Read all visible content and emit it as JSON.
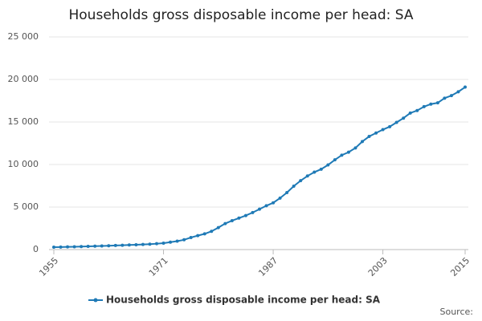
{
  "chart_data": {
    "type": "line",
    "title": "Households gross disposable income per head: SA",
    "source": "Source:",
    "x": [
      1955,
      1956,
      1957,
      1958,
      1959,
      1960,
      1961,
      1962,
      1963,
      1964,
      1965,
      1966,
      1967,
      1968,
      1969,
      1970,
      1971,
      1972,
      1973,
      1974,
      1975,
      1976,
      1977,
      1978,
      1979,
      1980,
      1981,
      1982,
      1983,
      1984,
      1985,
      1986,
      1987,
      1988,
      1989,
      1990,
      1991,
      1992,
      1993,
      1994,
      1995,
      1996,
      1997,
      1998,
      1999,
      2000,
      2001,
      2002,
      2003,
      2004,
      2005,
      2006,
      2007,
      2008,
      2009,
      2010,
      2011,
      2012,
      2013,
      2014,
      2015
    ],
    "series": [
      {
        "name": "Households gross disposable income per head: SA",
        "color": "#1f7ab6",
        "values": [
          280,
          300,
          320,
          335,
          355,
          380,
          405,
          425,
          450,
          480,
          510,
          540,
          565,
          600,
          635,
          690,
          760,
          870,
          990,
          1150,
          1420,
          1640,
          1850,
          2150,
          2580,
          3060,
          3400,
          3700,
          4000,
          4350,
          4750,
          5150,
          5500,
          6050,
          6700,
          7450,
          8100,
          8650,
          9100,
          9450,
          9950,
          10550,
          11100,
          11450,
          11950,
          12700,
          13300,
          13700,
          14100,
          14450,
          14950,
          15450,
          16050,
          16350,
          16800,
          17100,
          17250,
          17800,
          18100,
          18550,
          19100
        ]
      }
    ],
    "xlim": [
      1955,
      2015
    ],
    "xticks": [
      1955,
      1971,
      1987,
      2003,
      2015
    ],
    "ylim": [
      0,
      25000
    ],
    "yticks": [
      0,
      {
        "value": 5000,
        "label": "5 000"
      },
      {
        "value": 10000,
        "label": "10 000"
      },
      {
        "value": 15000,
        "label": "15 000"
      },
      {
        "value": 20000,
        "label": "20 000"
      },
      {
        "value": 25000,
        "label": "25 000"
      }
    ],
    "grid": true,
    "legend": "bottom"
  }
}
